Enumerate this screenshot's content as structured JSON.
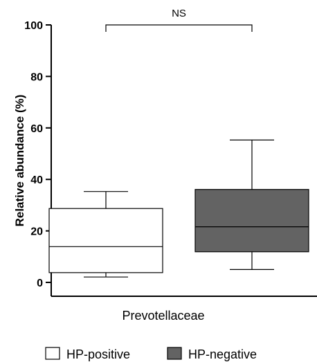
{
  "chart_data": {
    "type": "box",
    "title": "",
    "xlabel": "Prevotellaceae",
    "ylabel": "Relative abundance (%)",
    "ylim": [
      0,
      100
    ],
    "yticks": [
      0,
      20,
      40,
      60,
      80,
      100
    ],
    "grid": false,
    "legend_position": "bottom",
    "significance": {
      "label": "NS",
      "between": [
        "HP-positive",
        "HP-negative"
      ]
    },
    "series": [
      {
        "name": "HP-positive",
        "min": 2.1,
        "q1": 3.8,
        "median": 13.9,
        "q3": 28.7,
        "max": 35.3,
        "color": "#ffffff"
      },
      {
        "name": "HP-negative",
        "min": 5.0,
        "q1": 11.9,
        "median": 21.6,
        "q3": 36.1,
        "max": 55.3,
        "color": "#636363"
      }
    ]
  }
}
